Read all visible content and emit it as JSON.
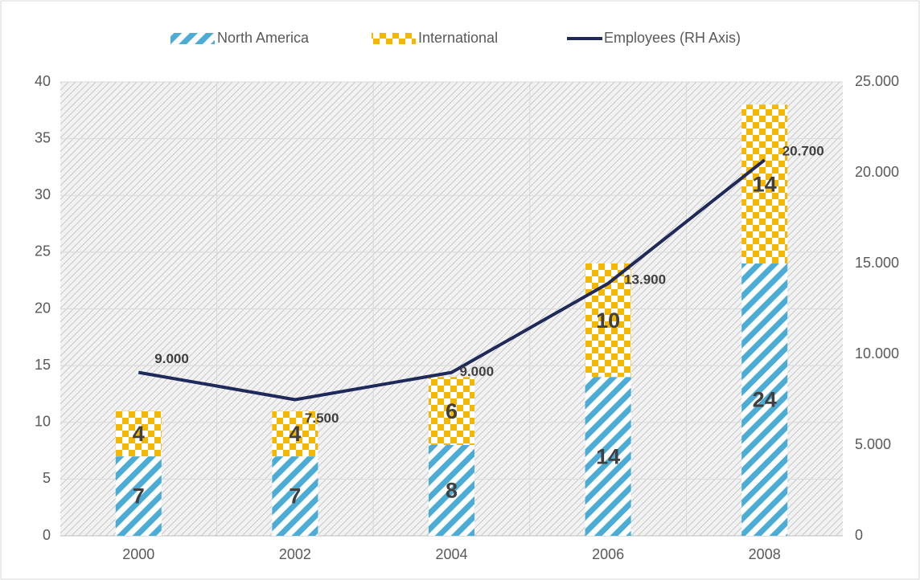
{
  "chart_data": {
    "type": "bar",
    "stacked": true,
    "categories": [
      "2000",
      "2002",
      "2004",
      "2006",
      "2008"
    ],
    "series": [
      {
        "name": "North America",
        "color": "#4bacd6",
        "pattern": "stripes",
        "values": [
          7,
          7,
          8,
          14,
          24
        ]
      },
      {
        "name": "International",
        "color": "#f5b800",
        "pattern": "checker",
        "values": [
          4,
          4,
          6,
          10,
          14
        ]
      },
      {
        "name": "Employees (RH Axis)",
        "color": "#1f2a5a",
        "type": "line",
        "axis": "y2",
        "values": [
          9000,
          7500,
          9000,
          13900,
          20700
        ],
        "value_labels": [
          "9.000",
          "7.500",
          "9.000",
          "13.900",
          "20.700"
        ]
      }
    ],
    "ylim": [
      0,
      40
    ],
    "yticks": [
      0,
      5,
      10,
      15,
      20,
      25,
      30,
      35,
      40
    ],
    "y2lim": [
      0,
      25000
    ],
    "y2ticks": [
      0,
      {
        "value": 5000,
        "label": "5.000"
      },
      {
        "value": 10000,
        "label": "10.000"
      },
      {
        "value": 15000,
        "label": "15.000"
      },
      {
        "value": 20000,
        "label": "20.000"
      },
      {
        "value": 25000,
        "label": "25.000"
      }
    ],
    "grid": true,
    "legend": "top"
  }
}
